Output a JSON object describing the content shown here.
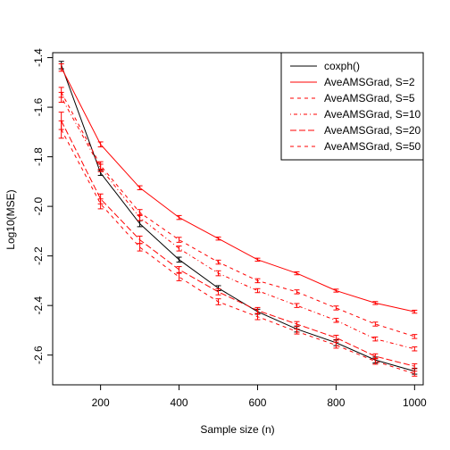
{
  "chart_data": {
    "type": "line",
    "xlabel": "Sample size (n)",
    "ylabel": "Log10(MSE)",
    "xlim": [
      78,
      1022
    ],
    "ylim": [
      -2.72,
      -1.38
    ],
    "x_ticks": [
      200,
      400,
      600,
      800,
      1000
    ],
    "y_ticks": [
      -2.6,
      -2.4,
      -2.2,
      -2.0,
      -1.8,
      -1.6,
      -1.4
    ],
    "legend_position": "top-right",
    "x": [
      100,
      200,
      300,
      400,
      500,
      600,
      700,
      800,
      900,
      1000
    ],
    "series": [
      {
        "name": "coxph()",
        "color": "#000000",
        "dash": "solid",
        "values": [
          -1.43,
          -1.865,
          -2.07,
          -2.215,
          -2.33,
          -2.425,
          -2.495,
          -2.55,
          -2.62,
          -2.665
        ],
        "err": [
          0.015,
          0.01,
          0.012,
          0.01,
          0.01,
          0.01,
          0.012,
          0.012,
          0.012,
          0.012
        ]
      },
      {
        "name": "AveAMSGrad, S=2",
        "color": "#ff0000",
        "dash": "solid",
        "values": [
          -1.44,
          -1.75,
          -1.925,
          -2.045,
          -2.13,
          -2.215,
          -2.27,
          -2.34,
          -2.39,
          -2.425
        ],
        "err": [
          0.015,
          0.01,
          0.008,
          0.008,
          0.006,
          0.006,
          0.006,
          0.006,
          0.006,
          0.006
        ]
      },
      {
        "name": "AveAMSGrad, S=5",
        "color": "#ff0000",
        "dash": "dashed",
        "values": [
          -1.54,
          -1.835,
          -2.025,
          -2.135,
          -2.225,
          -2.3,
          -2.345,
          -2.41,
          -2.475,
          -2.525
        ],
        "err": [
          0.02,
          0.015,
          0.012,
          0.01,
          0.008,
          0.008,
          0.008,
          0.008,
          0.008,
          0.008
        ]
      },
      {
        "name": "AveAMSGrad, S=10",
        "color": "#ff0000",
        "dash": "dotdash",
        "values": [
          -1.56,
          -1.845,
          -2.045,
          -2.17,
          -2.27,
          -2.34,
          -2.4,
          -2.46,
          -2.535,
          -2.575
        ],
        "err": [
          0.02,
          0.015,
          0.012,
          0.01,
          0.01,
          0.008,
          0.008,
          0.008,
          0.008,
          0.008
        ]
      },
      {
        "name": "AveAMSGrad, S=20",
        "color": "#ff0000",
        "dash": "longdash",
        "values": [
          -1.655,
          -1.97,
          -2.135,
          -2.255,
          -2.345,
          -2.42,
          -2.475,
          -2.53,
          -2.605,
          -2.645
        ],
        "err": [
          0.035,
          0.02,
          0.015,
          0.012,
          0.012,
          0.012,
          0.01,
          0.01,
          0.01,
          0.01
        ]
      },
      {
        "name": "AveAMSGrad, S=50",
        "color": "#ff0000",
        "dash": "dashed",
        "values": [
          -1.69,
          -1.99,
          -2.165,
          -2.285,
          -2.385,
          -2.445,
          -2.505,
          -2.56,
          -2.625,
          -2.675
        ],
        "err": [
          0.035,
          0.02,
          0.015,
          0.015,
          0.012,
          0.012,
          0.01,
          0.012,
          0.012,
          0.01
        ]
      }
    ]
  }
}
